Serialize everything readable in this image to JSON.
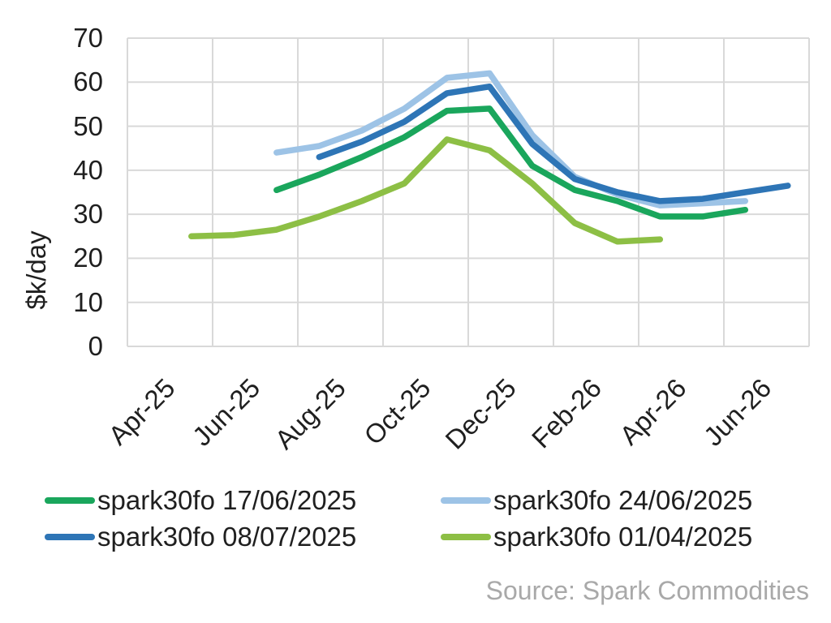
{
  "chart_data": {
    "type": "line",
    "title": "",
    "xlabel": "",
    "ylabel": "$k/day",
    "ylim": [
      0,
      70
    ],
    "y_ticks": [
      0,
      10,
      20,
      30,
      40,
      50,
      60,
      70
    ],
    "grid": true,
    "legend_position": "bottom",
    "months": [
      "Apr-25",
      "May-25",
      "Jun-25",
      "Jul-25",
      "Aug-25",
      "Sep-25",
      "Oct-25",
      "Nov-25",
      "Dec-25",
      "Jan-26",
      "Feb-26",
      "Mar-26",
      "Apr-26",
      "May-26",
      "Jun-26",
      "Jul-26"
    ],
    "x_tick_labels": [
      "Apr-25",
      "Jun-25",
      "Aug-25",
      "Oct-25",
      "Dec-25",
      "Feb-26",
      "Apr-26",
      "Jun-26"
    ],
    "x_tick_month_indices": [
      0,
      2,
      4,
      6,
      8,
      10,
      12,
      14
    ],
    "series": [
      {
        "name": "spark30fo 17/06/2025",
        "color": "#1aa65c",
        "start_month": "Jul-25",
        "start_month_index": 3,
        "values": [
          35.5,
          39,
          43,
          47.5,
          53.5,
          54,
          41,
          35.5,
          33,
          29.5,
          29.5,
          31
        ]
      },
      {
        "name": "spark30fo 24/06/2025",
        "color": "#9dc3e6",
        "start_month": "Jul-25",
        "start_month_index": 3,
        "values": [
          44,
          45.5,
          49,
          54,
          61,
          62,
          48,
          38.5,
          34.5,
          32,
          32.5,
          33
        ]
      },
      {
        "name": "spark30fo 08/07/2025",
        "color": "#2e75b6",
        "start_month": "Aug-25",
        "start_month_index": 4,
        "values": [
          43,
          46.5,
          51,
          57.5,
          59,
          46,
          38,
          35,
          33,
          33.5,
          35,
          36.5
        ]
      },
      {
        "name": "spark30fo 01/04/2025",
        "color": "#8dbf45",
        "start_month": "May-25",
        "start_month_index": 1,
        "values": [
          25,
          25.3,
          26.5,
          29.5,
          33,
          37,
          47,
          44.5,
          37,
          28,
          23.8,
          24.3
        ]
      }
    ],
    "source": "Source: Spark Commodities"
  },
  "colors": {
    "background": "#ffffff",
    "grid": "#d9d9d9",
    "text": "#1f1f1f",
    "source_text": "#a9a9a9"
  }
}
